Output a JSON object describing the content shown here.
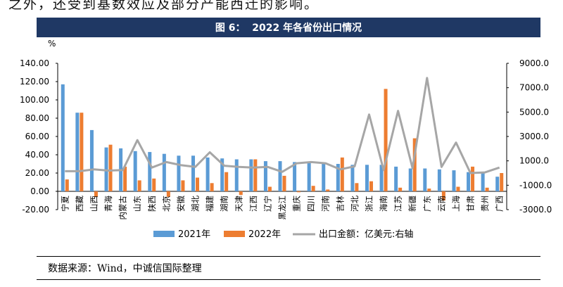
{
  "page": {
    "top_text": "之外，还受到基数效应及部分产能西迁的影响。",
    "figure_title": "图 6：  2022 年各省份出口情况",
    "source": "数据来源：Wind，中诚信国际整理"
  },
  "colors": {
    "banner": "#1f3864",
    "series_2021": "#5b9bd5",
    "series_2022": "#ed7d31",
    "series_export": "#a6a6a6"
  },
  "chart_data": {
    "type": "bar",
    "y_unit": "%",
    "ylim": [
      -20,
      140
    ],
    "yticks": [
      "140.00",
      "120.00",
      "100.00",
      "80.00",
      "60.00",
      "40.00",
      "20.00",
      "0.00",
      "-20.00"
    ],
    "y2lim": [
      -3000,
      9000
    ],
    "y2ticks": [
      "9000.0",
      "7000.0",
      "5000.0",
      "3000.0",
      "1000.0",
      "-1000.0",
      "-3000.0"
    ],
    "categories": [
      "宁夏",
      "西藏",
      "山西",
      "青海",
      "内蒙古",
      "山东",
      "陕西",
      "北京",
      "安徽",
      "湖北",
      "福建",
      "湖南",
      "天津",
      "江西",
      "辽宁",
      "黑龙江",
      "重庆",
      "四川",
      "河南",
      "吉林",
      "河北",
      "浙江",
      "海南",
      "江苏",
      "新疆",
      "广东",
      "云南",
      "上海",
      "甘肃",
      "贵州",
      "广西"
    ],
    "series": [
      {
        "name": "2021年",
        "type": "bar",
        "axis": "left",
        "values": [
          117,
          86,
          67,
          48,
          47,
          44,
          43,
          41,
          39,
          39,
          37,
          36,
          35,
          35,
          33,
          33,
          32,
          31,
          30,
          30,
          29,
          29,
          29,
          27,
          25,
          25,
          24,
          23,
          21,
          21,
          16
        ]
      },
      {
        "name": "2022年",
        "type": "bar",
        "axis": "left",
        "values": [
          13,
          86,
          -6,
          51,
          27,
          12,
          14,
          -6,
          12,
          15,
          9,
          21,
          -4,
          35,
          5,
          17,
          -1,
          6,
          2,
          37,
          9,
          11,
          112,
          4,
          58,
          3,
          -10,
          5,
          27,
          4,
          20
        ]
      },
      {
        "name": "出口金额：亿美元:右轴",
        "type": "line",
        "axis": "right",
        "values": [
          150,
          150,
          300,
          200,
          250,
          2700,
          450,
          900,
          650,
          500,
          1700,
          600,
          500,
          450,
          500,
          100,
          800,
          900,
          800,
          300,
          550,
          4800,
          250,
          5100,
          400,
          7800,
          500,
          2500,
          0,
          50,
          450
        ]
      }
    ],
    "legend": {
      "position": "bottom",
      "labels": [
        "2021年",
        "2022年",
        "出口金额：亿美元:右轴"
      ]
    }
  }
}
